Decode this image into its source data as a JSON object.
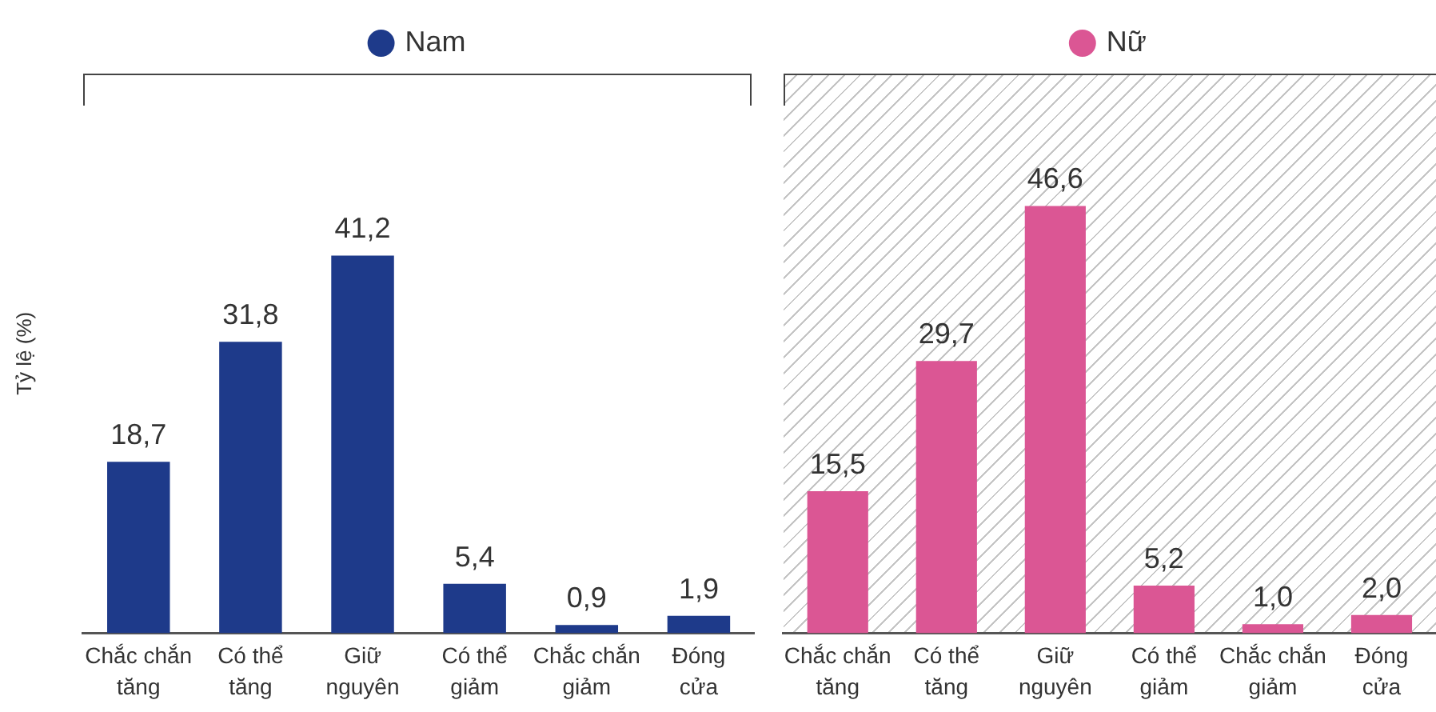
{
  "chart_data": [
    {
      "type": "bar",
      "ylabel": "Tỷ lệ (%)",
      "categories": [
        "Chắc chắn tăng",
        "Có thể tăng",
        "Giữ nguyên",
        "Có thể giảm",
        "Chắc chắn giảm",
        "Đóng cửa"
      ],
      "series": [
        {
          "name": "Nam",
          "color": "#1e3a8a",
          "values": [
            18.7,
            31.8,
            41.2,
            5.4,
            0.9,
            1.9
          ],
          "value_labels": [
            "18,7",
            "31,8",
            "41,2",
            "5,4",
            "0,9",
            "1,9"
          ]
        }
      ],
      "legend": "top",
      "tick_labels": "x"
    },
    {
      "type": "bar",
      "categories": [
        "Chắc chắn tăng",
        "Có thể tăng",
        "Giữ nguyên",
        "Có thể giảm",
        "Chắc chắn giảm",
        "Đóng cửa"
      ],
      "series": [
        {
          "name": "Nữ",
          "color": "#db5694",
          "values": [
            15.5,
            29.7,
            46.6,
            5.2,
            1.0,
            2.0
          ],
          "value_labels": [
            "15,5",
            "29,7",
            "46,6",
            "5,2",
            "1,0",
            "2,0"
          ]
        }
      ],
      "legend": "top",
      "tick_labels": "x"
    }
  ]
}
